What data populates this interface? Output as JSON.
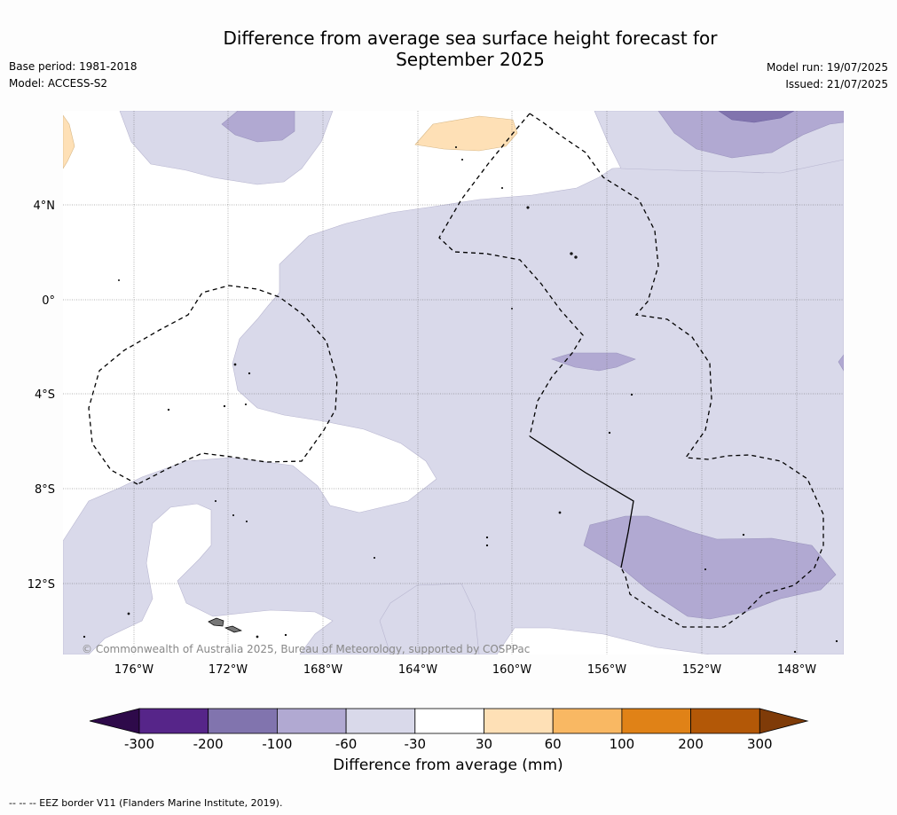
{
  "title": {
    "line1": "Difference from average sea surface height forecast for",
    "line2": "September 2025"
  },
  "meta_left": {
    "base_period": "Base period: 1981-2018",
    "model": "Model: ACCESS-S2"
  },
  "meta_right": {
    "model_run": "Model run: 19/07/2025",
    "issued": "Issued: 21/07/2025"
  },
  "map": {
    "lat_labels": [
      "4°N",
      "0°",
      "4°S",
      "8°S",
      "12°S"
    ],
    "lon_labels": [
      "176°W",
      "172°W",
      "168°W",
      "164°W",
      "160°W",
      "156°W",
      "152°W",
      "148°W"
    ],
    "copyright": "© Commonwealth of Australia 2025, Bureau of Meteorology, supported by COSPPac"
  },
  "colorbar": {
    "tick_labels": [
      "-300",
      "-200",
      "-100",
      "-60",
      "-30",
      "30",
      "60",
      "100",
      "200",
      "300"
    ],
    "colors": [
      "#2e0a4a",
      "#562589",
      "#8174ae",
      "#b1a9d2",
      "#d9d9ea",
      "#ffffff",
      "#fee0b6",
      "#f9b863",
      "#e08217",
      "#b35807",
      "#7f3b08"
    ],
    "title": "Difference from average (mm)"
  },
  "footnote": "-- -- -- EEZ border V11 (Flanders Marine Institute, 2019)."
}
